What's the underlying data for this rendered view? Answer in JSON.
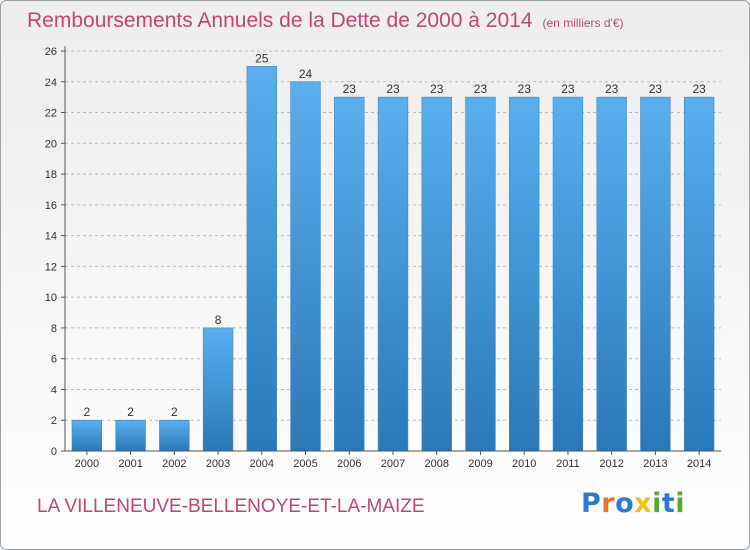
{
  "title": "Remboursements Annuels de la Dette de 2000 à 2014",
  "unit": "(en milliers d'€)",
  "city": "LA VILLENEUVE-BELLENOYE-ET-LA-MAIZE",
  "logo": {
    "text": "Proxiti",
    "colors": [
      "#2b7bd2",
      "#e8752a",
      "#2b7bd2",
      "#f2c21b",
      "#5aa832",
      "#2b7bd2",
      "#5aa832"
    ]
  },
  "colors": {
    "title": "#c2466e",
    "bar_top": "#5aafee",
    "bar_bottom": "#2a78b8",
    "grid": "#bbbbbb"
  },
  "chart_data": {
    "type": "bar",
    "categories": [
      "2000",
      "2001",
      "2002",
      "2003",
      "2004",
      "2005",
      "2006",
      "2007",
      "2008",
      "2009",
      "2010",
      "2011",
      "2012",
      "2013",
      "2014"
    ],
    "values": [
      2,
      2,
      2,
      8,
      25,
      24,
      23,
      23,
      23,
      23,
      23,
      23,
      23,
      23,
      23
    ],
    "yticks": [
      0,
      2,
      4,
      6,
      8,
      10,
      12,
      14,
      16,
      18,
      20,
      22,
      24,
      26
    ],
    "ylim": [
      0,
      26
    ],
    "grid": true,
    "data_labels": true
  }
}
